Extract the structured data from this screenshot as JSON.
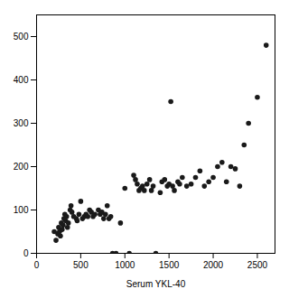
{
  "chart_data": {
    "type": "scatter",
    "x": [
      200,
      220,
      240,
      250,
      260,
      270,
      280,
      290,
      300,
      310,
      320,
      330,
      340,
      350,
      360,
      380,
      390,
      400,
      420,
      450,
      460,
      480,
      500,
      520,
      540,
      560,
      580,
      600,
      620,
      640,
      660,
      700,
      720,
      740,
      760,
      780,
      800,
      820,
      840,
      860,
      900,
      950,
      1000,
      1050,
      1100,
      1120,
      1140,
      1160,
      1180,
      1200,
      1220,
      1250,
      1280,
      1300,
      1320,
      1350,
      1400,
      1420,
      1450,
      1480,
      1500,
      1520,
      1540,
      1560,
      1600,
      1620,
      1650,
      1700,
      1750,
      1800,
      1850,
      1900,
      1950,
      2000,
      2050,
      2100,
      2150,
      2200,
      2250,
      2300,
      2350,
      2400,
      2500,
      2600
    ],
    "values": [
      50,
      30,
      45,
      60,
      50,
      40,
      70,
      55,
      65,
      80,
      90,
      75,
      85,
      60,
      70,
      100,
      110,
      95,
      85,
      80,
      75,
      90,
      120,
      80,
      85,
      90,
      85,
      100,
      95,
      85,
      90,
      100,
      90,
      95,
      80,
      90,
      110,
      80,
      85,
      0,
      0,
      70,
      150,
      0,
      180,
      170,
      160,
      145,
      150,
      155,
      145,
      160,
      170,
      145,
      155,
      0,
      140,
      165,
      170,
      155,
      160,
      350,
      155,
      145,
      165,
      160,
      175,
      155,
      160,
      175,
      190,
      155,
      165,
      175,
      200,
      210,
      165,
      200,
      195,
      155,
      250,
      300,
      360,
      480
    ],
    "xlabel": "Serum YKL-40",
    "xlim": [
      0,
      2700
    ],
    "ylim": [
      0,
      550
    ],
    "xticks": [
      0,
      500,
      1000,
      1500,
      2000,
      2500
    ],
    "yticks": [
      0,
      100,
      200,
      300,
      400,
      500
    ],
    "color": "#1a1a1a",
    "grid": false
  }
}
